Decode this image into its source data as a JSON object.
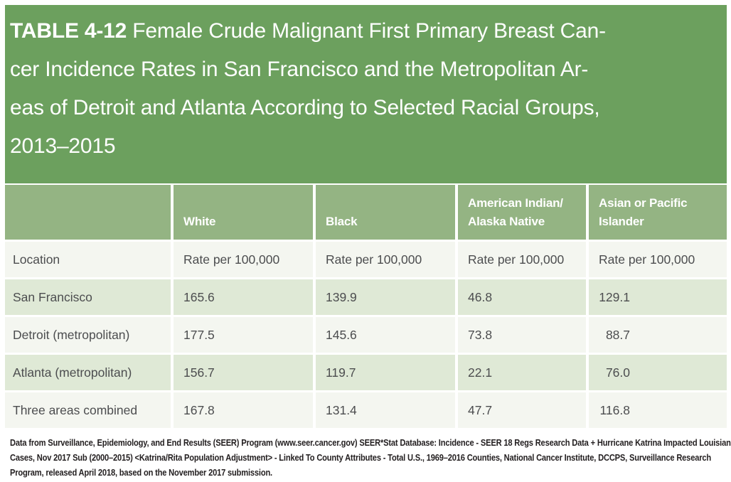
{
  "title": {
    "label": "TABLE 4-12",
    "line1_rest": "Female Crude Malignant First Primary Breast Can-",
    "line2": "cer Incidence Rates in San Francisco and the Metropolitan Ar-",
    "line3": "eas of Detroit and Atlanta According to Selected Racial Groups,",
    "line4": "2013–2015"
  },
  "table": {
    "headers": [
      {
        "label": ""
      },
      {
        "label": "White"
      },
      {
        "label": "Black"
      },
      {
        "label": "American Indian/\nAlaska Native"
      },
      {
        "label": "Asian or Pacific\nIslander"
      }
    ],
    "rows": [
      [
        "Location",
        "Rate per 100,000",
        "Rate per 100,000",
        "Rate per 100,000",
        "Rate per 100,000"
      ],
      [
        "San Francisco",
        "165.6",
        "139.9",
        "46.8",
        "129.1"
      ],
      [
        "Detroit (metropolitan)",
        "177.5",
        "145.6",
        "73.8",
        "88.7"
      ],
      [
        "Atlanta (metropolitan)",
        "156.7",
        "119.7",
        "22.1",
        "76.0"
      ],
      [
        "Three areas combined",
        "167.8",
        "131.4",
        "47.7",
        "116.8"
      ]
    ]
  },
  "footer": {
    "line1": "Data from Surveillance, Epidemiology, and End Results (SEER) Program (www.seer.cancer.gov) SEER*Stat Database: Incidence - SEER 18 Regs Research Data + Hurricane Katrina Impacted Louisiana",
    "line2": "Cases, Nov 2017 Sub (2000–2015) <Katrina/Rita Population Adjustment> - Linked To County Attributes - Total U.S., 1969–2016 Counties, National Cancer Institute, DCCPS, Surveillance Research",
    "line3": "Program, released April 2018, based on the November 2017 submission."
  },
  "colors": {
    "title_band_green": "#6ca05e",
    "header_row_green": "#94b483",
    "row_light_green": "#dfe9d6",
    "row_off_white": "#f4f6f0",
    "body_text": "#4c4d4f",
    "footer_text": "#231f20"
  }
}
